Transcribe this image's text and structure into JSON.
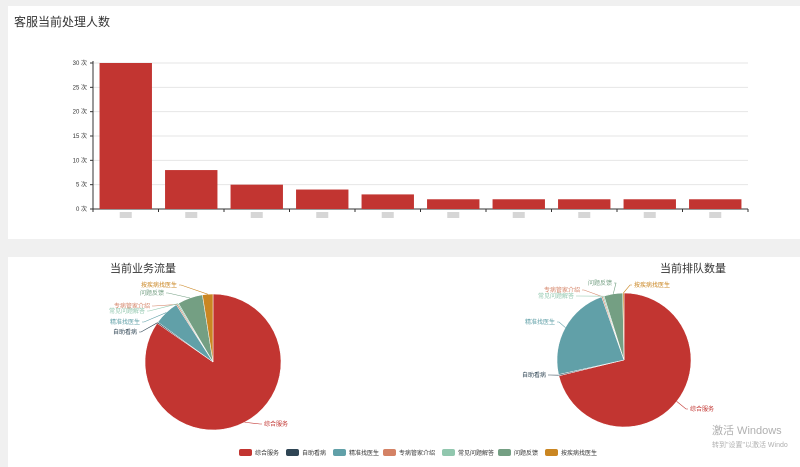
{
  "top_panel": {
    "title": "客服当前处理人数"
  },
  "watermark": {
    "line1": "激活 Windows",
    "line2": "转到\"设置\"以激活 Windo"
  },
  "colors": [
    "#c23531",
    "#2f4554",
    "#61a0a8",
    "#d48265",
    "#91c7ae",
    "#749f83",
    "#ca8622"
  ],
  "chart_data": [
    {
      "type": "bar",
      "title": "客服当前处理人数",
      "categories": [
        "",
        "",
        "",
        "",
        "",
        "",
        "",
        "",
        "",
        ""
      ],
      "values": [
        30,
        8,
        5,
        4,
        3,
        2,
        2,
        2,
        2,
        2
      ],
      "ylim": [
        0,
        30
      ],
      "yticks": [
        0,
        5,
        10,
        15,
        20,
        25,
        30
      ],
      "ytick_labels": [
        "0 次",
        "5 次",
        "10 次",
        "15 次",
        "20 次",
        "25 次",
        "30 次"
      ],
      "grid": true,
      "color": "#c23531"
    },
    {
      "type": "pie",
      "title": "当前业务流量",
      "slices": [
        {
          "name": "综合服务",
          "value": 85
        },
        {
          "name": "自助看病",
          "value": 0.3
        },
        {
          "name": "精准找医生",
          "value": 6
        },
        {
          "name": "专病管家介绍",
          "value": 0.3
        },
        {
          "name": "常见问题解答",
          "value": 0.3
        },
        {
          "name": "问题反馈",
          "value": 6
        },
        {
          "name": "按疾病找医生",
          "value": 2.5
        }
      ]
    },
    {
      "type": "pie",
      "title": "当前排队数量",
      "slices": [
        {
          "name": "综合服务",
          "value": 71
        },
        {
          "name": "自助看病",
          "value": 0.3
        },
        {
          "name": "精准找医生",
          "value": 23
        },
        {
          "name": "专病管家介绍",
          "value": 0.3
        },
        {
          "name": "常见问题解答",
          "value": 0.3
        },
        {
          "name": "问题反馈",
          "value": 4.5
        },
        {
          "name": "按疾病找医生",
          "value": 0.3
        }
      ]
    }
  ],
  "legend": {
    "position": "bottom-center",
    "items": [
      "综合服务",
      "自助看病",
      "精准找医生",
      "专病管家介绍",
      "常见问题解答",
      "问题反馈",
      "按疾病找医生"
    ]
  }
}
